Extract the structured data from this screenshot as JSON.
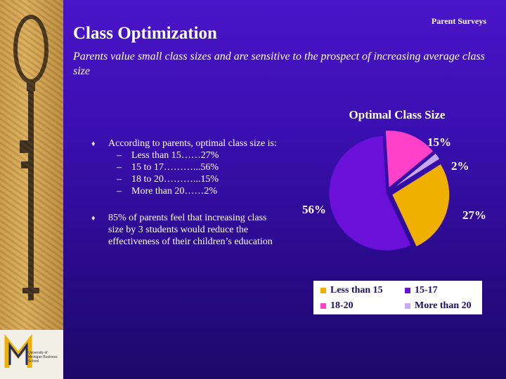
{
  "header": {
    "tag": "Parent Surveys",
    "title": "Class Optimization",
    "subtitle": "Parents value small class sizes and are sensitive to the prospect of increasing average class size"
  },
  "bullets": [
    {
      "text": "According to parents, optimal class size is:",
      "subitems": [
        "Less than 15……27%",
        "15 to 17………...56%",
        "18 to 20………...15%",
        "More than 20……2%"
      ]
    },
    {
      "text": "85% of parents feel that increasing class size by 3 students would reduce the effectiveness of their children’s education",
      "subitems": []
    }
  ],
  "logo": {
    "text": "University of Michigan Business School"
  },
  "chart_data": {
    "type": "pie",
    "title": "Optimal Class Size",
    "series": [
      {
        "name": "Less than 15",
        "value": 27,
        "label": "27%",
        "color": "#f0b000"
      },
      {
        "name": "15-17",
        "value": 56,
        "label": "56%",
        "color": "#6a10d8"
      },
      {
        "name": "18-20",
        "value": 15,
        "label": "15%",
        "color": "#ff40c8"
      },
      {
        "name": "More than 20",
        "value": 2,
        "label": "2%",
        "color": "#c8a8f0"
      }
    ],
    "legend_position": "bottom"
  }
}
